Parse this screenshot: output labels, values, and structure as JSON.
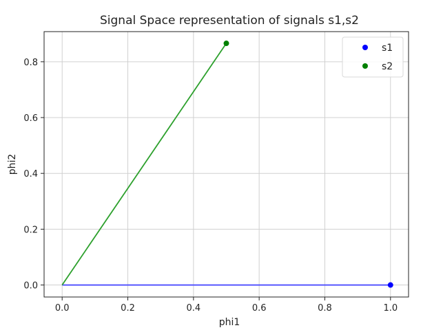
{
  "chart_data": {
    "type": "scatter",
    "title": "Signal Space representation of signals s1,s2",
    "xlabel": "phi1",
    "ylabel": "phi2",
    "xlim": [
      -0.055,
      1.055
    ],
    "ylim": [
      -0.043,
      0.908
    ],
    "xticks": [
      0.0,
      0.2,
      0.4,
      0.6,
      0.8,
      1.0
    ],
    "xtick_labels": [
      "0.0",
      "0.2",
      "0.4",
      "0.6",
      "0.8",
      "1.0"
    ],
    "yticks": [
      0.0,
      0.2,
      0.4,
      0.6,
      0.8
    ],
    "ytick_labels": [
      "0.0",
      "0.2",
      "0.4",
      "0.6",
      "0.8"
    ],
    "grid": true,
    "legend_position": "top-right",
    "series": [
      {
        "name": "s1",
        "color": "#0000ff",
        "line_color": "#4b4bff",
        "x": [
          1.0
        ],
        "y": [
          0.0
        ]
      },
      {
        "name": "s2",
        "color": "#008000",
        "line_color": "#2ca02c",
        "x": [
          0.5
        ],
        "y": [
          0.866
        ]
      }
    ]
  }
}
